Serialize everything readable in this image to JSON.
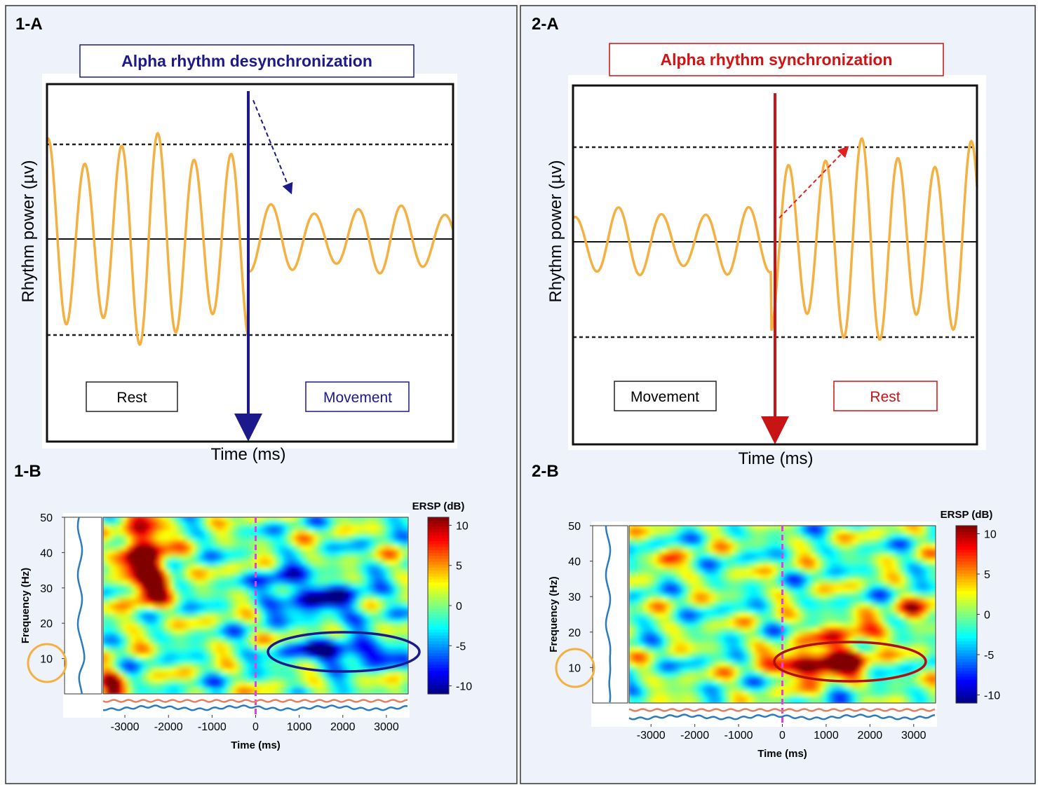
{
  "panels": [
    {
      "label": "1-A",
      "title": "Alpha rhythm desynchronization",
      "ylabel": "Rhythm power (µv)",
      "xlabel": "Time (ms)",
      "boxes": [
        "Rest",
        "Movement"
      ]
    },
    {
      "label": "2-A",
      "title": "Alpha rhythm synchronization",
      "ylabel": "Rhythm power (µv)",
      "xlabel": "Time (ms)",
      "boxes": [
        "Movement",
        "Rest"
      ]
    }
  ],
  "spectrograms": [
    {
      "label": "1-B",
      "xlabel": "Time (ms)",
      "ylabel": "Frequency (Hz)",
      "xlim": [
        -3500,
        3500
      ],
      "xticks": [
        -3000,
        -2000,
        -1000,
        0,
        1000,
        2000,
        3000
      ],
      "ylim": [
        0,
        50
      ],
      "yticks": [
        10,
        20,
        30,
        40,
        50
      ],
      "colorbar_title": "ERSP (dB)",
      "colorbar_lim": [
        -11,
        11
      ],
      "colorbar_ticks": [
        -10,
        -5,
        0,
        5,
        10
      ]
    },
    {
      "label": "2-B",
      "xlabel": "Time (ms)",
      "ylabel": "Frequency (Hz)",
      "xlim": [
        -3500,
        3500
      ],
      "xticks": [
        -3000,
        -2000,
        -1000,
        0,
        1000,
        2000,
        3000
      ],
      "ylim": [
        0,
        50
      ],
      "yticks": [
        10,
        20,
        30,
        40,
        50
      ],
      "colorbar_title": "ERSP (dB)",
      "colorbar_lim": [
        -11,
        11
      ],
      "colorbar_ticks": [
        -10,
        -5,
        0,
        5,
        10
      ]
    }
  ]
}
